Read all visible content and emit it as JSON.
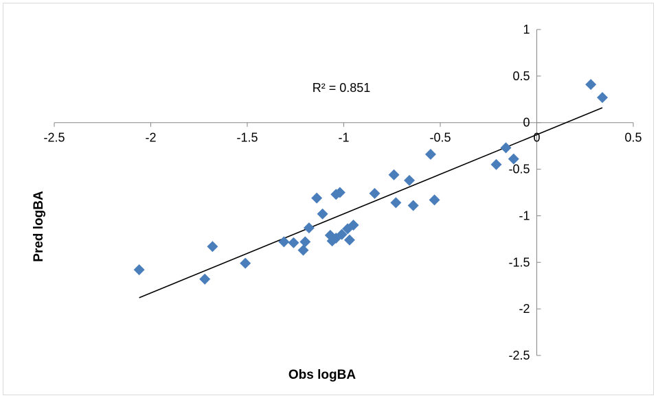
{
  "chart_data": {
    "type": "scatter",
    "xlabel": "Obs logBA",
    "ylabel": "Pred logBA",
    "xlim": [
      -2.5,
      0.5
    ],
    "ylim": [
      -2.5,
      1
    ],
    "x_ticks": [
      -2.5,
      -2,
      -1.5,
      -1,
      -0.5,
      0,
      0.5
    ],
    "y_ticks": [
      -2.5,
      -2,
      -1.5,
      -1,
      -0.5,
      0,
      0.5,
      1
    ],
    "x_tick_labels": [
      "-2.5",
      "-2",
      "-1.5",
      "-1",
      "-0.5",
      "0",
      "0.5"
    ],
    "y_tick_labels": [
      "-2.5",
      "-2",
      "-1.5",
      "-1",
      "-0.5",
      "0",
      "0.5",
      "1"
    ],
    "grid": false,
    "marker_color": "#4a7ebb",
    "marker": "diamond",
    "trendline": {
      "type": "linear",
      "x_range": [
        -2.06,
        0.34
      ],
      "y_range": [
        -1.88,
        0.16
      ],
      "color": "#000000"
    },
    "annotation": "R² = 0.851",
    "points": [
      {
        "x": -2.06,
        "y": -1.58
      },
      {
        "x": -1.72,
        "y": -1.68
      },
      {
        "x": -1.68,
        "y": -1.33
      },
      {
        "x": -1.51,
        "y": -1.51
      },
      {
        "x": -1.31,
        "y": -1.28
      },
      {
        "x": -1.26,
        "y": -1.29
      },
      {
        "x": -1.21,
        "y": -1.37
      },
      {
        "x": -1.2,
        "y": -1.28
      },
      {
        "x": -1.18,
        "y": -1.13
      },
      {
        "x": -1.14,
        "y": -0.81
      },
      {
        "x": -1.11,
        "y": -0.98
      },
      {
        "x": -1.07,
        "y": -1.21
      },
      {
        "x": -1.06,
        "y": -1.27
      },
      {
        "x": -1.04,
        "y": -1.24
      },
      {
        "x": -1.04,
        "y": -0.77
      },
      {
        "x": -1.02,
        "y": -0.75
      },
      {
        "x": -1.01,
        "y": -1.2
      },
      {
        "x": -0.98,
        "y": -1.14
      },
      {
        "x": -0.97,
        "y": -1.26
      },
      {
        "x": -0.95,
        "y": -1.1
      },
      {
        "x": -0.84,
        "y": -0.76
      },
      {
        "x": -0.74,
        "y": -0.56
      },
      {
        "x": -0.73,
        "y": -0.86
      },
      {
        "x": -0.66,
        "y": -0.62
      },
      {
        "x": -0.64,
        "y": -0.89
      },
      {
        "x": -0.55,
        "y": -0.34
      },
      {
        "x": -0.53,
        "y": -0.83
      },
      {
        "x": -0.21,
        "y": -0.45
      },
      {
        "x": -0.16,
        "y": -0.27
      },
      {
        "x": -0.12,
        "y": -0.39
      },
      {
        "x": 0.28,
        "y": 0.41
      },
      {
        "x": 0.34,
        "y": 0.27
      }
    ]
  }
}
